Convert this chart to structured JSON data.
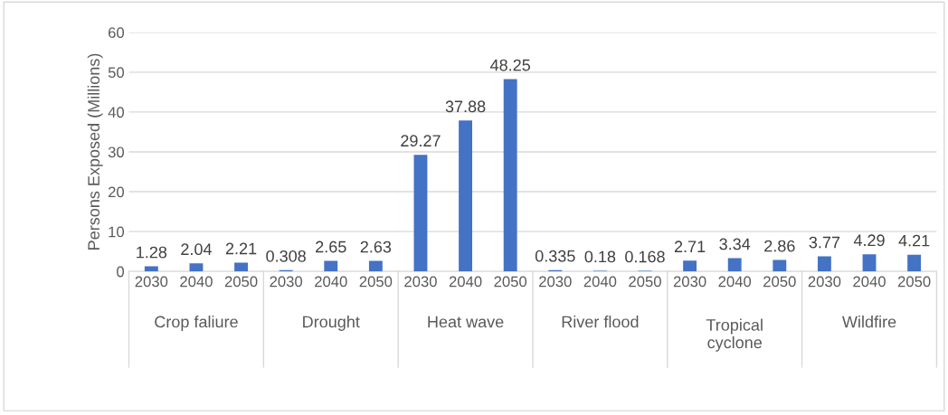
{
  "chart_data": {
    "type": "bar",
    "ylabel": "Persons Exposed (Millions)",
    "categories": [
      "2030",
      "2040",
      "2050",
      "2030",
      "2040",
      "2050",
      "2030",
      "2040",
      "2050",
      "2030",
      "2040",
      "2050",
      "2030",
      "2040",
      "2050",
      "2030",
      "2040",
      "2050"
    ],
    "values": [
      1.28,
      2.04,
      2.21,
      0.308,
      2.65,
      2.63,
      29.27,
      37.88,
      48.25,
      0.335,
      0.18,
      0.168,
      2.71,
      3.34,
      2.86,
      3.77,
      4.29,
      4.21
    ],
    "color": "#4472c4",
    "ylim": [
      0,
      60
    ],
    "yticks": [
      0,
      10,
      20,
      30,
      40,
      50,
      60
    ],
    "grid": "y",
    "data_labels": true,
    "annotations": [
      "Crop faliure",
      "Drought",
      "Heat wave",
      "River flood",
      "Tropical cyclone",
      "Wildfire"
    ]
  }
}
